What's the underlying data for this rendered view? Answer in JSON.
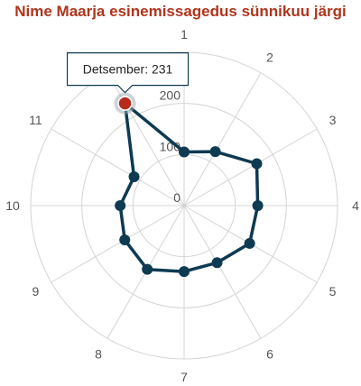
{
  "colors": {
    "title": "#b0341c",
    "series": "#0e3a52",
    "highlight": "#b82a1c",
    "grid": "#d4d4d4"
  },
  "chart_data": {
    "type": "radar",
    "title": "Nime Maarja esinemissagedus sünnikuu järgi",
    "categories": [
      "1",
      "2",
      "3",
      "4",
      "5",
      "6",
      "7",
      "8",
      "9",
      "10",
      "11",
      "12"
    ],
    "radial_ticks": [
      "0",
      "100",
      "200"
    ],
    "radial_max": 300,
    "series": [
      {
        "values": [
          105,
          122,
          164,
          144,
          148,
          129,
          129,
          144,
          134,
          125,
          113,
          231
        ]
      }
    ],
    "highlighted_point": {
      "category_index": 11,
      "label": "Detsember: 231"
    },
    "grid": true
  }
}
